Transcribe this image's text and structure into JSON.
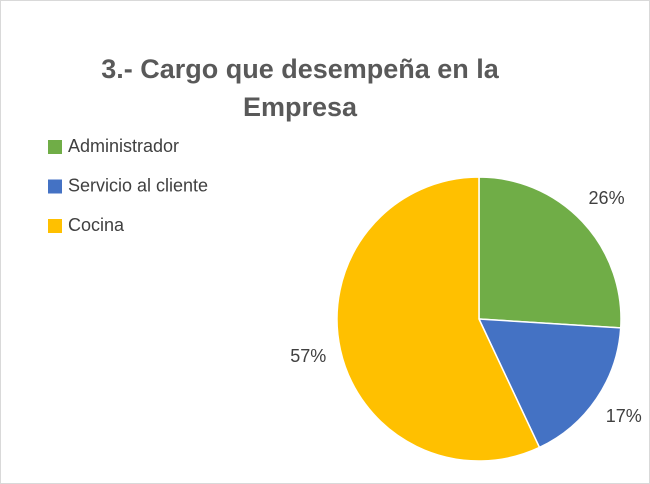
{
  "chart_data": {
    "type": "pie",
    "title": "3.- Cargo que desempeña en la Empresa",
    "categories": [
      "Administrador",
      "Servicio al cliente",
      "Cocina"
    ],
    "values": [
      26,
      17,
      57
    ],
    "value_labels": [
      "26%",
      "17%",
      "57%"
    ],
    "colors": [
      "#70ad47",
      "#4472c4",
      "#ffc000"
    ],
    "legend": "top-left"
  }
}
